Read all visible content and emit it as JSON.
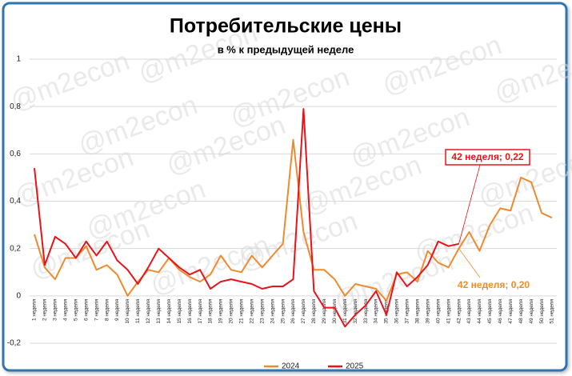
{
  "chart_data": {
    "type": "line",
    "title": "Потребительские цены",
    "subtitle": "в % к предыдущей неделе",
    "watermark": "@m2econ",
    "categories": [
      "1 неделя",
      "2 неделя",
      "3 неделя",
      "4 неделя",
      "5 неделя",
      "6 неделя",
      "7 неделя",
      "8 неделя",
      "9 неделя",
      "10 неделя",
      "11 неделя",
      "12 неделя",
      "13 неделя",
      "14 неделя",
      "15 неделя",
      "16 неделя",
      "17 неделя",
      "18 неделя",
      "19 неделя",
      "20 неделя",
      "21 неделя",
      "22 неделя",
      "23 неделя",
      "24 неделя",
      "25 неделя",
      "26 неделя",
      "27 неделя",
      "28 неделя",
      "29 неделя",
      "30 неделя",
      "31 неделя",
      "32 неделя",
      "33 неделя",
      "34 неделя",
      "35 неделя",
      "36 неделя",
      "37 неделя",
      "38 неделя",
      "39 неделя",
      "40 неделя",
      "41 неделя",
      "42 неделя",
      "43 неделя",
      "44 неделя",
      "45 неделя",
      "46 неделя",
      "47 неделя",
      "48 неделя",
      "49 неделя",
      "50 неделя",
      "51 неделя"
    ],
    "series": [
      {
        "name": "2024",
        "color": "#ed8b2e",
        "values": [
          0.26,
          0.12,
          0.07,
          0.16,
          0.16,
          0.21,
          0.11,
          0.13,
          0.09,
          0.0,
          0.06,
          0.11,
          0.1,
          0.16,
          0.11,
          0.08,
          0.06,
          0.09,
          0.17,
          0.11,
          0.1,
          0.17,
          0.12,
          0.17,
          0.22,
          0.66,
          0.27,
          0.11,
          0.11,
          0.07,
          0.0,
          0.05,
          0.04,
          0.03,
          -0.02,
          0.09,
          0.1,
          0.06,
          0.19,
          0.14,
          0.12,
          0.2,
          0.27,
          0.19,
          0.3,
          0.37,
          0.36,
          0.5,
          0.48,
          0.35,
          0.33
        ]
      },
      {
        "name": "2025",
        "color": "#e8141c",
        "values": [
          0.54,
          0.13,
          0.25,
          0.22,
          0.16,
          0.23,
          0.17,
          0.23,
          0.15,
          0.11,
          0.05,
          0.12,
          0.2,
          0.16,
          0.12,
          0.09,
          0.11,
          0.03,
          0.06,
          0.07,
          0.06,
          0.05,
          0.03,
          0.04,
          0.04,
          0.07,
          0.79,
          0.02,
          -0.05,
          -0.05,
          -0.13,
          -0.08,
          -0.04,
          0.02,
          -0.08,
          0.1,
          0.04,
          0.08,
          0.13,
          0.23,
          0.21,
          0.22,
          null,
          null,
          null,
          null,
          null,
          null,
          null,
          null,
          null
        ]
      }
    ],
    "annotations": [
      "42 неделя; 0,22",
      "42 неделя; 0,20"
    ],
    "ylim": [
      -0.2,
      1
    ],
    "yticks": [
      {
        "value": -0.2,
        "label": "-0,2"
      },
      0,
      {
        "value": 0.2,
        "label": "0,2"
      },
      {
        "value": 0.4,
        "label": "0,4"
      },
      {
        "value": 0.6,
        "label": "0,6"
      },
      {
        "value": 0.8,
        "label": "0,8"
      },
      1
    ],
    "grid": true,
    "legend": "bottom"
  }
}
